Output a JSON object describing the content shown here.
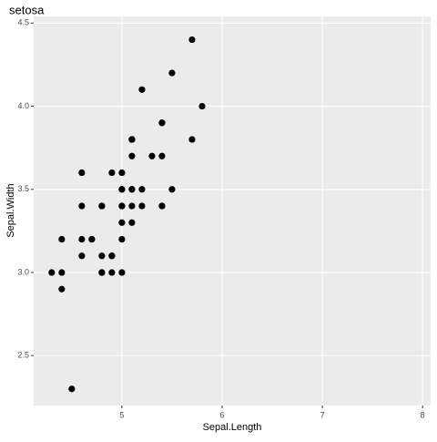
{
  "chart_data": {
    "type": "scatter",
    "title": "setosa",
    "x_label": "Sepal.Length",
    "y_label": "Sepal.Width",
    "x": [
      5.1,
      4.9,
      4.7,
      4.6,
      5.0,
      5.4,
      4.6,
      5.0,
      4.4,
      4.9,
      5.4,
      4.8,
      4.8,
      4.3,
      5.8,
      5.7,
      5.4,
      5.1,
      5.7,
      5.1,
      5.4,
      5.1,
      4.6,
      5.1,
      4.8,
      5.0,
      5.0,
      5.2,
      5.2,
      4.7,
      4.8,
      5.4,
      5.2,
      5.5,
      4.9,
      5.0,
      5.5,
      4.9,
      4.4,
      5.1,
      5.0,
      4.5,
      4.4,
      5.0,
      5.1,
      4.8,
      5.1,
      4.6,
      5.3,
      5.0
    ],
    "values": [
      3.5,
      3.0,
      3.2,
      3.1,
      3.6,
      3.9,
      3.4,
      3.4,
      2.9,
      3.1,
      3.7,
      3.4,
      3.0,
      3.0,
      4.0,
      4.4,
      3.9,
      3.5,
      3.8,
      3.8,
      3.4,
      3.7,
      3.6,
      3.3,
      3.4,
      3.0,
      3.4,
      3.5,
      3.4,
      3.2,
      3.1,
      3.4,
      4.1,
      4.2,
      3.1,
      3.2,
      3.5,
      3.6,
      3.0,
      3.4,
      3.5,
      2.3,
      3.2,
      3.5,
      3.8,
      3.0,
      3.8,
      3.2,
      3.7,
      3.3
    ],
    "color": "#000000",
    "xlim": [
      4.12,
      8.08
    ],
    "xticks": [
      5,
      6,
      7,
      8
    ],
    "ylim": [
      2.2,
      4.54
    ],
    "yticks": [
      2.5,
      {
        "value": 3.0,
        "label": "3.0"
      },
      3.5,
      {
        "value": 4.0,
        "label": "4.0"
      },
      4.5
    ],
    "grid": true
  }
}
